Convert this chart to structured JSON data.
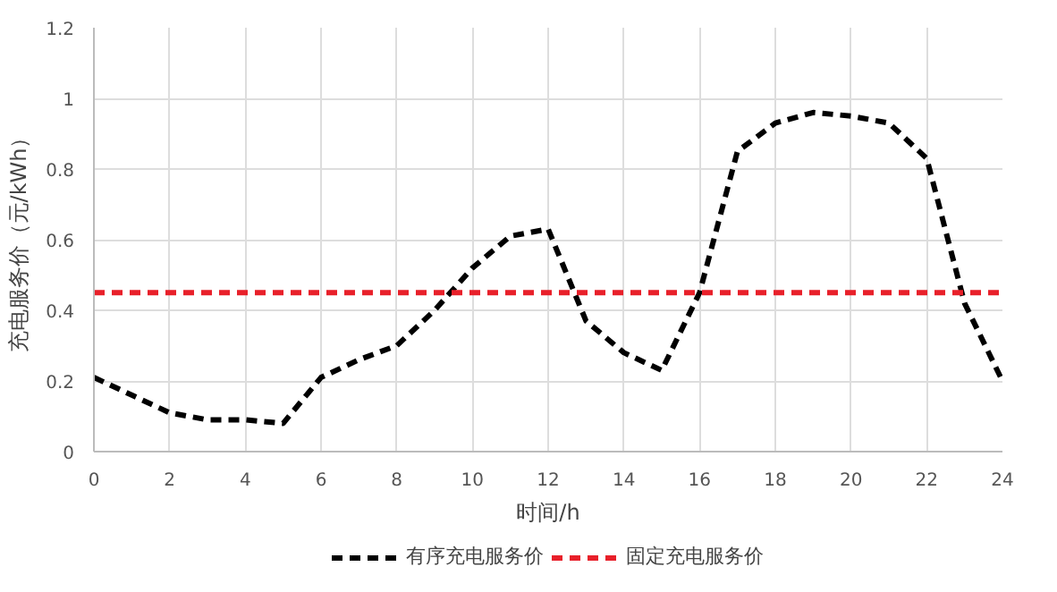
{
  "chart_data": {
    "type": "line",
    "xlabel": "时间/h",
    "ylabel": "充电服务价（元/kWh）",
    "x": [
      0,
      1,
      2,
      3,
      4,
      5,
      6,
      7,
      8,
      9,
      10,
      11,
      12,
      13,
      14,
      15,
      16,
      17,
      18,
      19,
      20,
      21,
      22,
      23,
      24
    ],
    "series": [
      {
        "name": "有序充电服务价",
        "color": "#000000",
        "line_style": "dashed",
        "values": [
          0.21,
          0.16,
          0.11,
          0.09,
          0.09,
          0.08,
          0.21,
          0.26,
          0.3,
          0.4,
          0.52,
          0.61,
          0.63,
          0.37,
          0.28,
          0.23,
          0.45,
          0.85,
          0.93,
          0.96,
          0.95,
          0.93,
          0.83,
          0.42,
          0.2
        ]
      },
      {
        "name": "固定充电服务价",
        "color": "#e8202a",
        "line_style": "dashed",
        "x": [
          0,
          24
        ],
        "values": [
          0.45,
          0.45
        ]
      }
    ],
    "xlim": [
      0,
      24
    ],
    "xticks": [
      0,
      2,
      4,
      6,
      8,
      10,
      12,
      14,
      16,
      18,
      20,
      22,
      24
    ],
    "ylim": [
      0,
      1.2
    ],
    "yticks": [
      0,
      0.2,
      0.4,
      0.6,
      0.8,
      1,
      1.2
    ],
    "grid": true,
    "legend": "bottom",
    "marker": "none"
  }
}
